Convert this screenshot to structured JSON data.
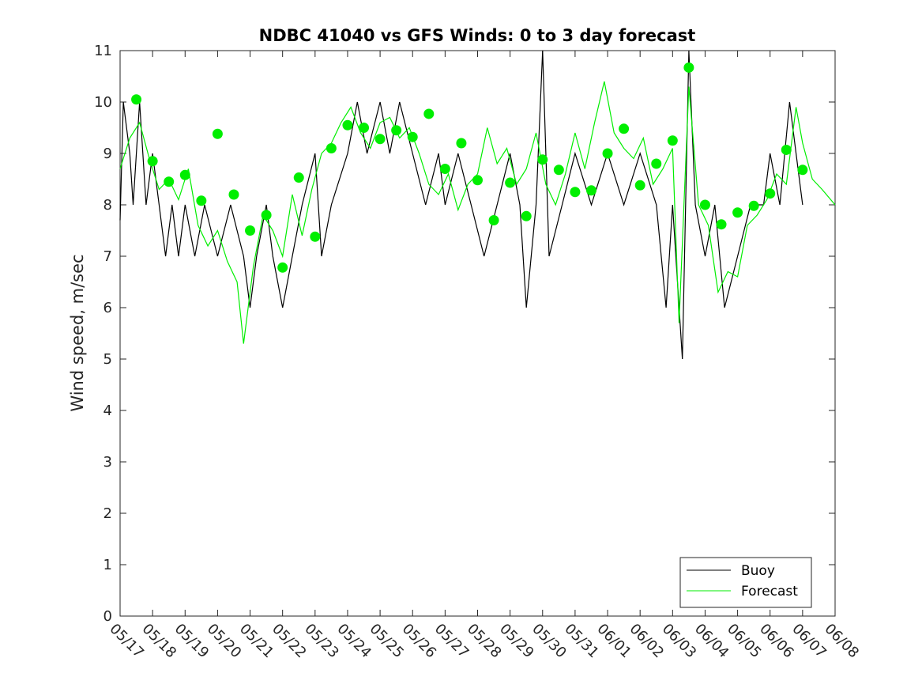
{
  "chart_data": {
    "type": "line",
    "title": "NDBC 41040 vs GFS Winds: 0 to 3 day forecast",
    "xlabel": "",
    "ylabel": "Wind speed, m/sec",
    "xlim": [
      "05/17",
      "06/08"
    ],
    "ylim": [
      0,
      11
    ],
    "yticks": [
      0,
      1,
      2,
      3,
      4,
      5,
      6,
      7,
      8,
      9,
      10,
      11
    ],
    "xtick_labels": [
      "05/17",
      "05/18",
      "05/19",
      "05/20",
      "05/21",
      "05/22",
      "05/23",
      "05/24",
      "05/25",
      "05/26",
      "05/27",
      "05/28",
      "05/29",
      "05/30",
      "05/31",
      "06/01",
      "06/02",
      "06/03",
      "06/04",
      "06/05",
      "06/06",
      "06/07",
      "06/08"
    ],
    "grid": false,
    "legend_position": "bottom-right",
    "colors": {
      "buoy": "#000000",
      "forecast": "#00ee00",
      "marker": "#00ee00"
    },
    "series": [
      {
        "name": "Buoy",
        "color": "#000000",
        "style": "line",
        "points": [
          [
            0,
            7.7
          ],
          [
            0.1,
            10
          ],
          [
            0.3,
            9
          ],
          [
            0.4,
            8
          ],
          [
            0.6,
            10
          ],
          [
            0.8,
            8
          ],
          [
            1,
            9
          ],
          [
            1.2,
            8
          ],
          [
            1.4,
            7
          ],
          [
            1.6,
            8
          ],
          [
            1.8,
            7
          ],
          [
            2,
            8
          ],
          [
            2.3,
            7
          ],
          [
            2.6,
            8
          ],
          [
            3,
            7
          ],
          [
            3.4,
            8
          ],
          [
            3.8,
            7
          ],
          [
            4,
            6
          ],
          [
            4.2,
            7
          ],
          [
            4.5,
            8
          ],
          [
            4.7,
            7
          ],
          [
            5,
            6
          ],
          [
            5.3,
            7
          ],
          [
            5.6,
            8
          ],
          [
            6,
            9
          ],
          [
            6.2,
            7
          ],
          [
            6.5,
            8
          ],
          [
            7,
            9
          ],
          [
            7.3,
            10
          ],
          [
            7.6,
            9
          ],
          [
            8,
            10
          ],
          [
            8.3,
            9
          ],
          [
            8.6,
            10
          ],
          [
            9,
            9
          ],
          [
            9.4,
            8
          ],
          [
            9.8,
            9
          ],
          [
            10,
            8
          ],
          [
            10.4,
            9
          ],
          [
            10.8,
            8
          ],
          [
            11.2,
            7
          ],
          [
            11.6,
            8
          ],
          [
            12,
            9
          ],
          [
            12.3,
            8
          ],
          [
            12.5,
            6
          ],
          [
            12.8,
            8
          ],
          [
            13,
            11
          ],
          [
            13.2,
            7
          ],
          [
            13.6,
            8
          ],
          [
            14,
            9
          ],
          [
            14.5,
            8
          ],
          [
            15,
            9
          ],
          [
            15.5,
            8
          ],
          [
            16,
            9
          ],
          [
            16.5,
            8
          ],
          [
            16.8,
            6
          ],
          [
            17,
            8
          ],
          [
            17.3,
            5
          ],
          [
            17.5,
            11
          ],
          [
            17.7,
            8
          ],
          [
            18,
            7
          ],
          [
            18.3,
            8
          ],
          [
            18.6,
            6
          ],
          [
            19,
            7
          ],
          [
            19.4,
            8
          ],
          [
            19.8,
            8
          ],
          [
            20,
            9
          ],
          [
            20.3,
            8
          ],
          [
            20.6,
            10
          ],
          [
            20.8,
            9
          ],
          [
            21,
            8
          ]
        ]
      },
      {
        "name": "Forecast",
        "color": "#00ee00",
        "style": "line",
        "points": [
          [
            0,
            8.7
          ],
          [
            0.3,
            9.3
          ],
          [
            0.6,
            9.6
          ],
          [
            0.9,
            8.9
          ],
          [
            1.2,
            8.3
          ],
          [
            1.5,
            8.5
          ],
          [
            1.8,
            8.1
          ],
          [
            2.1,
            8.7
          ],
          [
            2.4,
            7.6
          ],
          [
            2.7,
            7.2
          ],
          [
            3,
            7.5
          ],
          [
            3.3,
            6.9
          ],
          [
            3.6,
            6.5
          ],
          [
            3.8,
            5.3
          ],
          [
            4.1,
            6.8
          ],
          [
            4.4,
            7.8
          ],
          [
            4.7,
            7.5
          ],
          [
            5,
            7.0
          ],
          [
            5.3,
            8.2
          ],
          [
            5.6,
            7.4
          ],
          [
            5.9,
            8.3
          ],
          [
            6.2,
            9.0
          ],
          [
            6.5,
            9.2
          ],
          [
            6.8,
            9.6
          ],
          [
            7.1,
            9.9
          ],
          [
            7.4,
            9.4
          ],
          [
            7.7,
            9.1
          ],
          [
            8,
            9.6
          ],
          [
            8.3,
            9.7
          ],
          [
            8.6,
            9.3
          ],
          [
            8.9,
            9.5
          ],
          [
            9.2,
            9.0
          ],
          [
            9.5,
            8.4
          ],
          [
            9.8,
            8.2
          ],
          [
            10.1,
            8.6
          ],
          [
            10.4,
            7.9
          ],
          [
            10.7,
            8.4
          ],
          [
            11,
            8.6
          ],
          [
            11.3,
            9.5
          ],
          [
            11.6,
            8.8
          ],
          [
            11.9,
            9.1
          ],
          [
            12.2,
            8.4
          ],
          [
            12.5,
            8.7
          ],
          [
            12.8,
            9.4
          ],
          [
            13.1,
            8.4
          ],
          [
            13.4,
            8.0
          ],
          [
            13.7,
            8.6
          ],
          [
            14,
            9.4
          ],
          [
            14.3,
            8.7
          ],
          [
            14.6,
            9.6
          ],
          [
            14.9,
            10.4
          ],
          [
            15.2,
            9.4
          ],
          [
            15.5,
            9.1
          ],
          [
            15.8,
            8.9
          ],
          [
            16.1,
            9.3
          ],
          [
            16.4,
            8.4
          ],
          [
            16.7,
            8.7
          ],
          [
            17,
            9.1
          ],
          [
            17.2,
            5.7
          ],
          [
            17.5,
            10.3
          ],
          [
            17.8,
            8.0
          ],
          [
            18.1,
            7.6
          ],
          [
            18.4,
            6.3
          ],
          [
            18.7,
            6.7
          ],
          [
            19,
            6.6
          ],
          [
            19.3,
            7.6
          ],
          [
            19.6,
            7.8
          ],
          [
            19.9,
            8.1
          ],
          [
            20.2,
            8.6
          ],
          [
            20.5,
            8.4
          ],
          [
            20.8,
            9.9
          ],
          [
            21,
            9.2
          ],
          [
            21.3,
            8.5
          ],
          [
            21.6,
            8.3
          ],
          [
            22,
            8.0
          ]
        ]
      }
    ],
    "markers": {
      "color": "#00ee00",
      "points": [
        [
          0.5,
          10.05
        ],
        [
          1,
          8.85
        ],
        [
          1.5,
          8.45
        ],
        [
          2,
          8.58
        ],
        [
          2.5,
          8.08
        ],
        [
          3,
          9.38
        ],
        [
          3.5,
          8.2
        ],
        [
          4,
          7.5
        ],
        [
          4.5,
          7.8
        ],
        [
          5,
          6.78
        ],
        [
          5.5,
          8.53
        ],
        [
          6,
          7.38
        ],
        [
          6.5,
          9.1
        ],
        [
          7,
          9.55
        ],
        [
          7.5,
          9.5
        ],
        [
          8,
          9.28
        ],
        [
          8.5,
          9.45
        ],
        [
          9,
          9.32
        ],
        [
          9.5,
          9.77
        ],
        [
          10,
          8.7
        ],
        [
          10.5,
          9.2
        ],
        [
          11,
          8.48
        ],
        [
          11.5,
          7.7
        ],
        [
          12,
          8.43
        ],
        [
          12.5,
          7.78
        ],
        [
          13,
          8.88
        ],
        [
          13.5,
          8.68
        ],
        [
          14,
          8.25
        ],
        [
          14.5,
          8.28
        ],
        [
          15,
          9.0
        ],
        [
          15.5,
          9.48
        ],
        [
          16,
          8.38
        ],
        [
          16.5,
          8.8
        ],
        [
          17,
          9.25
        ],
        [
          17.5,
          10.67
        ],
        [
          18,
          8.0
        ],
        [
          18.5,
          7.62
        ],
        [
          19,
          7.85
        ],
        [
          19.5,
          7.98
        ],
        [
          20,
          8.22
        ],
        [
          20.5,
          9.07
        ],
        [
          21,
          8.68
        ]
      ]
    }
  }
}
